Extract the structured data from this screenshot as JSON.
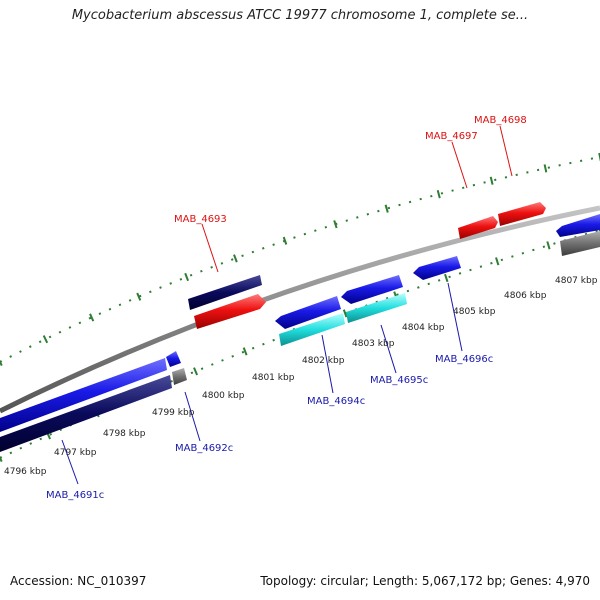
{
  "title": "Mycobacterium abscessus ATCC 19977 chromosome 1, complete se...",
  "accession": "Accession: NC_010397",
  "summary": "Topology: circular; Length: 5,067,172 bp; Genes: 4,970",
  "colors": {
    "backbone": "#8a8a8a",
    "tick": "#2e7d32",
    "forward_gene": "#1010e6",
    "forward_dark": "#000066",
    "reverse_red": "#ee1111",
    "cyan": "#22dede",
    "gray_feature": "#707070",
    "label_blue": "#1a1aaa",
    "label_red": "#dd1111"
  },
  "ticks": [
    {
      "label": "4796 kbp"
    },
    {
      "label": "4797 kbp"
    },
    {
      "label": "4798 kbp"
    },
    {
      "label": "4799 kbp"
    },
    {
      "label": "4800 kbp"
    },
    {
      "label": "4801 kbp"
    },
    {
      "label": "4802 kbp"
    },
    {
      "label": "4803 kbp"
    },
    {
      "label": "4804 kbp"
    },
    {
      "label": "4805 kbp"
    },
    {
      "label": "4806 kbp"
    },
    {
      "label": "4807 kbp"
    }
  ],
  "genes": [
    {
      "name": "MAB_4691c",
      "color": "#1a1aaa"
    },
    {
      "name": "MAB_4692c",
      "color": "#1a1aaa"
    },
    {
      "name": "MAB_4693",
      "color": "#dd1111"
    },
    {
      "name": "MAB_4694c",
      "color": "#1a1aaa"
    },
    {
      "name": "MAB_4695c",
      "color": "#1a1aaa"
    },
    {
      "name": "MAB_4696c",
      "color": "#1a1aaa"
    },
    {
      "name": "MAB_4697",
      "color": "#dd1111"
    },
    {
      "name": "MAB_4698",
      "color": "#dd1111"
    }
  ]
}
